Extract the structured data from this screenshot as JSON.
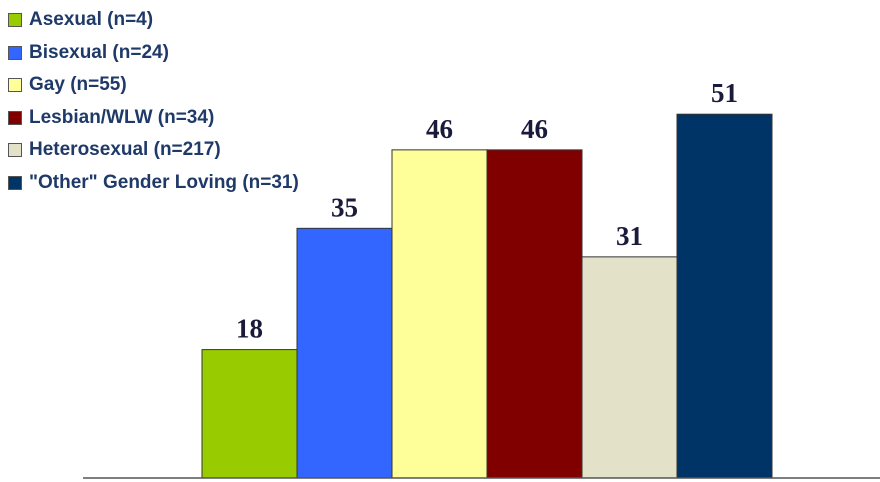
{
  "chart_data": {
    "type": "bar",
    "title": "",
    "xlabel": "",
    "ylabel": "",
    "ylim": [
      0,
      60
    ],
    "grid": false,
    "legend_position": "top-left",
    "categories": [
      ""
    ],
    "series": [
      {
        "name": "Asexual (n=4)",
        "values": [
          18
        ],
        "color": "#99cc00"
      },
      {
        "name": "Bisexual (n=24)",
        "values": [
          35
        ],
        "color": "#3366ff"
      },
      {
        "name": "Gay (n=55)",
        "values": [
          46
        ],
        "color": "#ffff99"
      },
      {
        "name": "Lesbian/WLW (n=34)",
        "values": [
          46
        ],
        "color": "#800000"
      },
      {
        "name": "Heterosexual (n=217)",
        "values": [
          31
        ],
        "color": "#e3e1c8"
      },
      {
        "name": "\"Other\" Gender Loving (n=31)",
        "values": [
          51
        ],
        "color": "#003366"
      }
    ]
  }
}
